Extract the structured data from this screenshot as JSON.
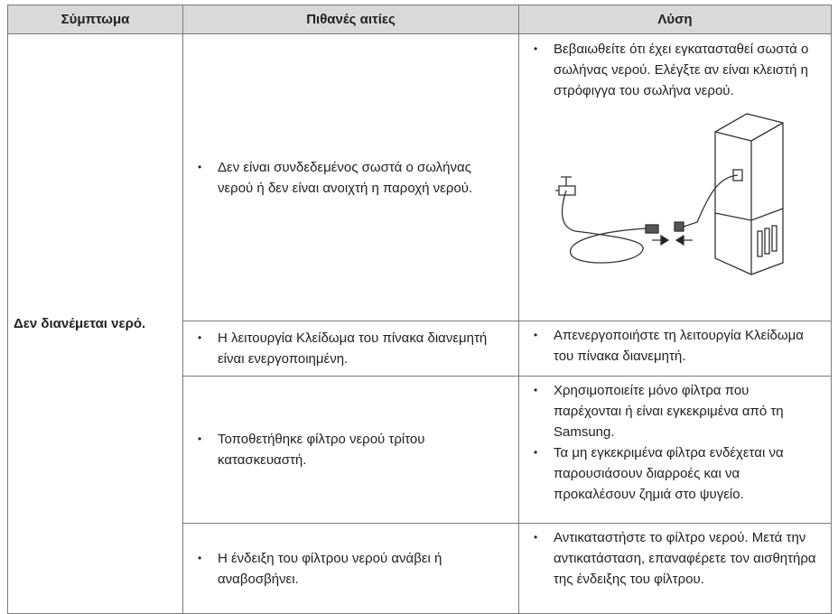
{
  "table": {
    "header": [
      "Σύμπτωμα",
      "Πιθανές αιτίες",
      "Λύση"
    ],
    "symptom": "Δεν διανέμεται νερό.",
    "rows": [
      {
        "causes": [
          "Δεν είναι συνδεδεμένος σωστά ο σωλήνας νερού ή δεν είναι ανοιχτή η παροχή νερού."
        ],
        "solutions": [
          "Βεβαιωθείτε ότι έχει εγκατασταθεί σωστά ο σωλήνας νερού. Ελέγξτε αν είναι κλειστή η στρόφιγγα του σωλήνα νερού."
        ]
      },
      {
        "causes": [
          "Η λειτουργία Κλείδωμα του πίνακα διανεμητή είναι ενεργοποιημένη."
        ],
        "solutions": [
          "Απενεργοποιήστε τη λειτουργία Κλείδωμα του πίνακα διανεμητή."
        ]
      },
      {
        "causes": [
          "Τοποθετήθηκε φίλτρο νερού τρίτου κατασκευαστή."
        ],
        "solutions": [
          "Χρησιμοποιείτε μόνο φίλτρα που παρέχονται ή είναι εγκεκριμένα από τη Samsung.",
          "Τα μη εγκεκριμένα φίλτρα ενδέχεται να παρουσιάσουν διαρροές και να προκαλέσουν ζημιά στο ψυγείο."
        ]
      },
      {
        "causes": [
          "Η ένδειξη του φίλτρου νερού ανάβει ή αναβοσβήνει."
        ],
        "solutions": [
          "Αντικαταστήστε το φίλτρο νερού. Μετά την αντικατάσταση, επαναφέρετε τον αισθητήρα της ένδειξης του φίλτρου."
        ]
      }
    ]
  }
}
